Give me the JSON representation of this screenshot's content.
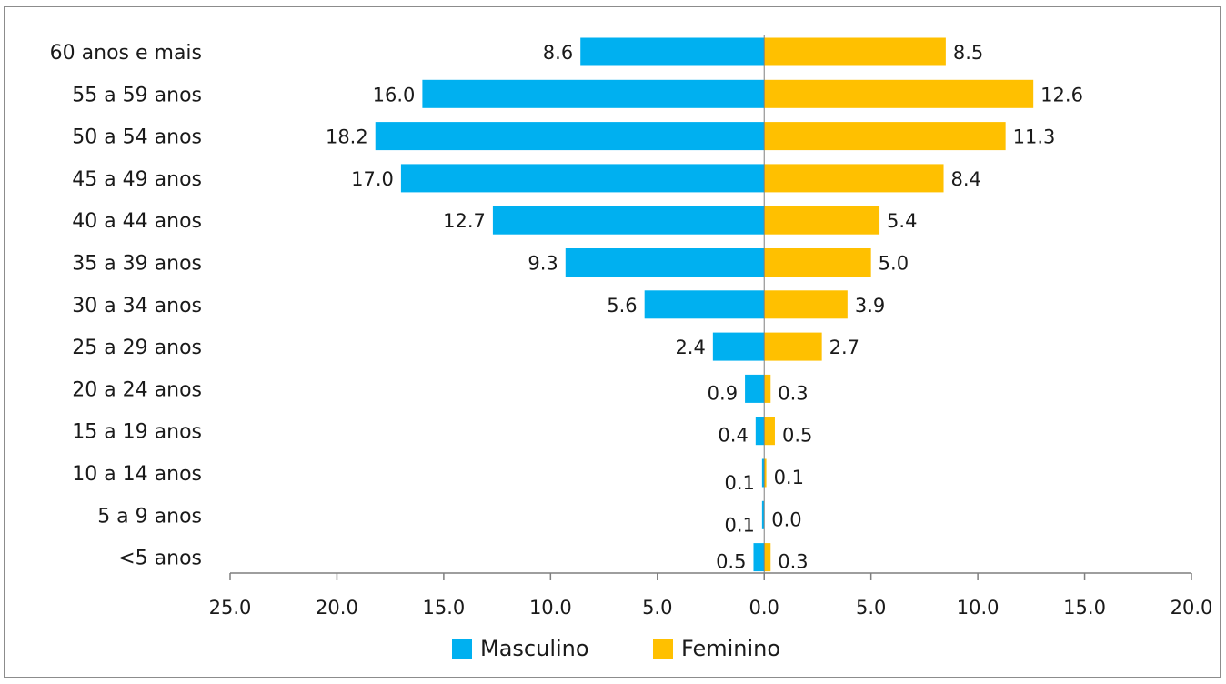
{
  "chart_data": {
    "type": "bar",
    "orientation": "horizontal",
    "layout": "population-pyramid",
    "categories": [
      "60 anos e mais",
      "55 a 59 anos",
      "50 a 54 anos",
      "45 a 49 anos",
      "40 a 44 anos",
      "35 a 39 anos",
      "30 a 34 anos",
      "25 a 29 anos",
      "20 a 24 anos",
      "15 a 19 anos",
      "10 a 14 anos",
      "5 a 9 anos",
      "<5 anos"
    ],
    "series": [
      {
        "name": "Masculino",
        "color": "#00b0f0",
        "direction": "left",
        "values": [
          8.6,
          16.0,
          18.2,
          17.0,
          12.7,
          9.3,
          5.6,
          2.4,
          0.9,
          0.4,
          0.1,
          0.1,
          0.5
        ]
      },
      {
        "name": "Feminino",
        "color": "#ffc000",
        "direction": "right",
        "values": [
          8.5,
          12.6,
          11.3,
          8.4,
          5.4,
          5.0,
          3.9,
          2.7,
          0.3,
          0.5,
          0.1,
          0.0,
          0.3
        ]
      }
    ],
    "xlim": [
      -25,
      20
    ],
    "x_ticks": [
      -25,
      -20,
      -15,
      -10,
      -5,
      0,
      5,
      10,
      15,
      20
    ],
    "x_tick_labels": [
      "25.0",
      "20.0",
      "15.0",
      "10.0",
      "5.0",
      "0.0",
      "5.0",
      "10.0",
      "15.0",
      "20.0"
    ],
    "legend_position": "bottom",
    "grid": false
  }
}
